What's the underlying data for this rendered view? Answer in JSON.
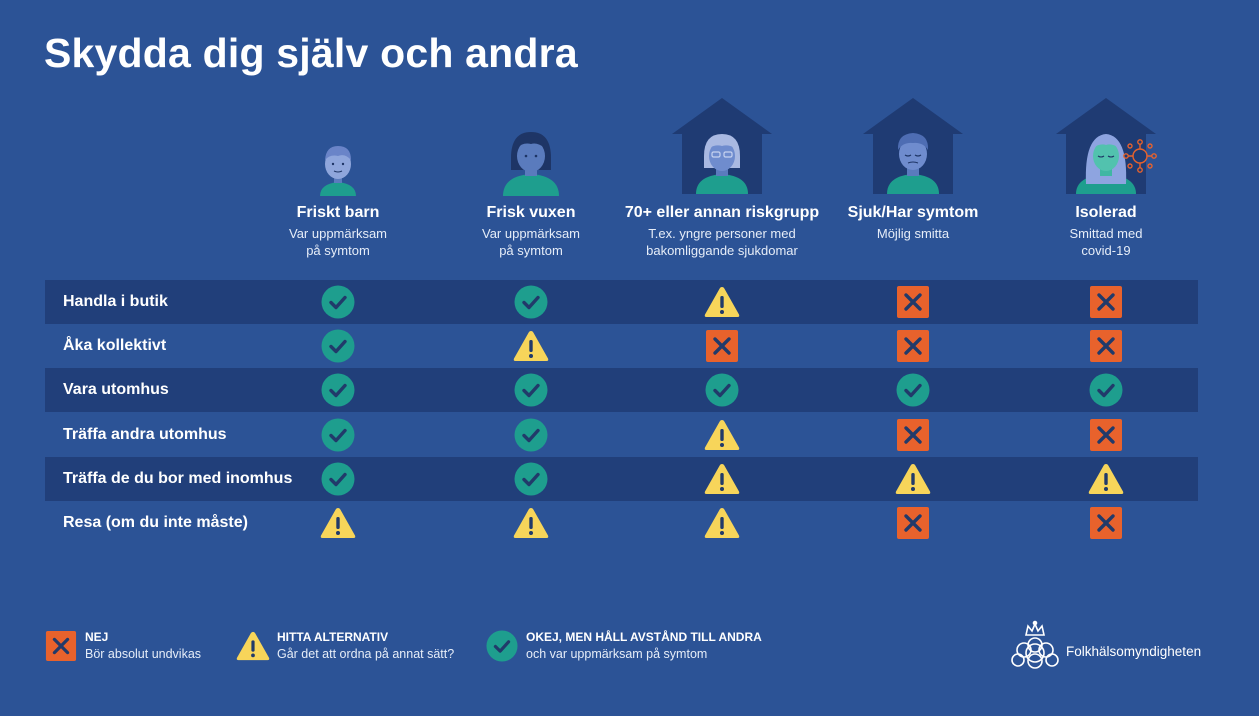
{
  "title": "Skydda dig själv och andra",
  "columns": [
    {
      "name": "Friskt barn",
      "sub": "Var uppmärksam\npå symtom",
      "icon": "child-icon"
    },
    {
      "name": "Frisk vuxen",
      "sub": "Var uppmärksam\npå symtom",
      "icon": "adult-icon"
    },
    {
      "name": "70+ eller annan riskgrupp",
      "sub": "T.ex. yngre personer med\nbakomliggande sjukdomar",
      "icon": "elderly-in-house-icon"
    },
    {
      "name": "Sjuk/Har symtom",
      "sub": "Möjlig smitta",
      "icon": "sick-person-in-house-icon"
    },
    {
      "name": "Isolerad",
      "sub": "Smittad med\ncovid-19",
      "icon": "isolated-person-in-house-icon"
    }
  ],
  "rows": [
    {
      "label": "Handla i butik",
      "values": [
        "ok",
        "ok",
        "warn",
        "no",
        "no"
      ]
    },
    {
      "label": "Åka kollektivt",
      "values": [
        "ok",
        "warn",
        "no",
        "no",
        "no"
      ]
    },
    {
      "label": "Vara utomhus",
      "values": [
        "ok",
        "ok",
        "ok",
        "ok",
        "ok"
      ]
    },
    {
      "label": "Träffa andra utomhus",
      "values": [
        "ok",
        "ok",
        "warn",
        "no",
        "no"
      ]
    },
    {
      "label": "Träffa de du bor med inomhus",
      "values": [
        "ok",
        "ok",
        "warn",
        "warn",
        "warn"
      ]
    },
    {
      "label": "Resa (om du inte måste)",
      "values": [
        "warn",
        "warn",
        "warn",
        "no",
        "no"
      ]
    }
  ],
  "legend": [
    {
      "key": "no",
      "title": "NEJ",
      "text": "Bör absolut undvikas"
    },
    {
      "key": "warn",
      "title": "HITTA ALTERNATIV",
      "text": "Går det att ordna på annat sätt?"
    },
    {
      "key": "ok",
      "title": "OKEJ, MEN HÅLL AVSTÅND TILL ANDRA",
      "text": "och var uppmärksam på symtom"
    }
  ],
  "logo_text": "Folkhälsomyndigheten",
  "colors": {
    "background": "#2c5396",
    "row_dark": "#213f7a",
    "ok": "#1e9e8e",
    "warn": "#f7d55a",
    "no": "#e8622c",
    "icon_dark": "#213a6a"
  }
}
